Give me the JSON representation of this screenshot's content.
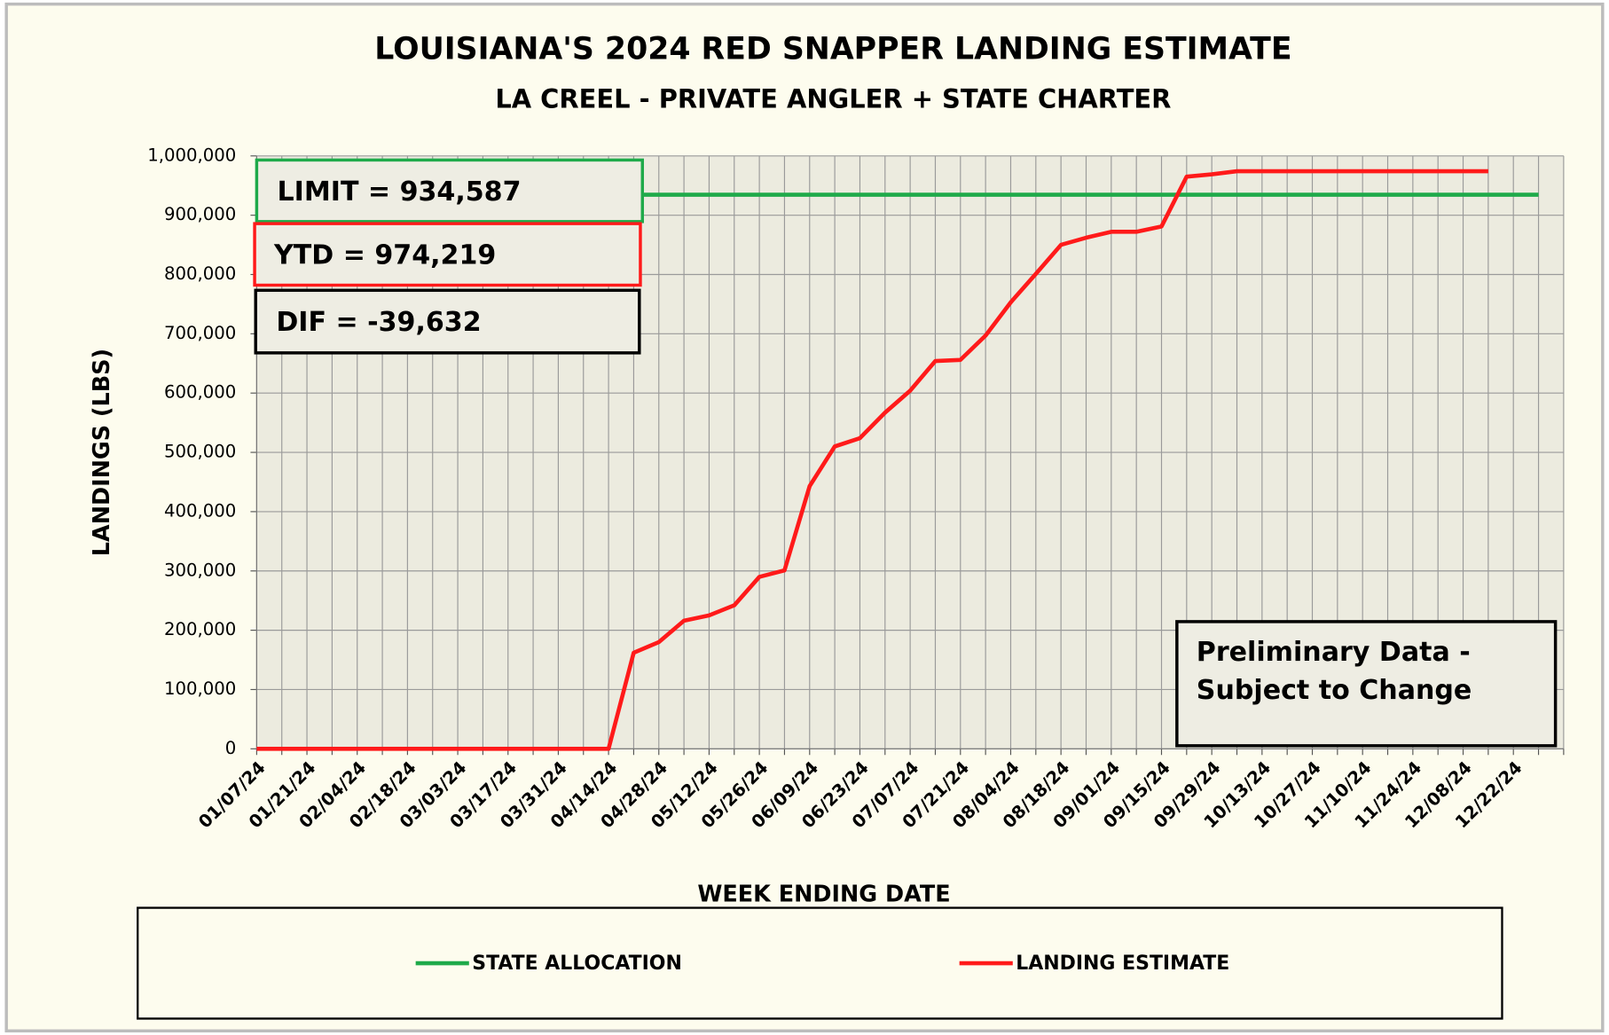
{
  "chart_data": {
    "type": "line",
    "title": "LOUISIANA'S 2024 RED SNAPPER LANDING ESTIMATE",
    "subtitle": "LA CREEL - PRIVATE ANGLER + STATE CHARTER",
    "y_label": "LANDINGS (LBS)",
    "x_label": "WEEK ENDING DATE",
    "annotations": {
      "limit": "LIMIT = 934,587",
      "ytd": "YTD = 974,219",
      "dif": "DIF = -39,632",
      "note": [
        "Preliminary Data -",
        "Subject to Change"
      ]
    },
    "categories": [
      "01/07/24",
      null,
      "01/21/24",
      null,
      "02/04/24",
      null,
      "02/18/24",
      null,
      "03/03/24",
      null,
      "03/17/24",
      null,
      "03/31/24",
      null,
      "04/14/24",
      null,
      "04/28/24",
      null,
      "05/12/24",
      null,
      "05/26/24",
      null,
      "06/09/24",
      null,
      "06/23/24",
      null,
      "07/07/24",
      null,
      "07/21/24",
      null,
      "08/04/24",
      null,
      "08/18/24",
      null,
      "09/01/24",
      null,
      "09/15/24",
      null,
      "09/29/24",
      null,
      "10/13/24",
      null,
      "10/27/24",
      null,
      "11/10/24",
      null,
      "11/24/24",
      null,
      "12/08/24",
      null,
      "12/22/24",
      null,
      null
    ],
    "series": [
      {
        "name": "STATE ALLOCATION",
        "color": "#1faa4a",
        "values": [
          934587,
          934587,
          934587,
          934587,
          934587,
          934587,
          934587,
          934587,
          934587,
          934587,
          934587,
          934587,
          934587,
          934587,
          934587,
          934587,
          934587,
          934587,
          934587,
          934587,
          934587,
          934587,
          934587,
          934587,
          934587,
          934587,
          934587,
          934587,
          934587,
          934587,
          934587,
          934587,
          934587,
          934587,
          934587,
          934587,
          934587,
          934587,
          934587,
          934587,
          934587,
          934587,
          934587,
          934587,
          934587,
          934587,
          934587,
          934587,
          934587,
          934587,
          934587,
          934587,
          null
        ]
      },
      {
        "name": "LANDING ESTIMATE",
        "color": "#ff1a1a",
        "values": [
          0,
          0,
          0,
          0,
          0,
          0,
          0,
          0,
          0,
          0,
          0,
          0,
          0,
          0,
          0,
          162000,
          180000,
          216000,
          225000,
          242000,
          290000,
          301000,
          443000,
          510000,
          524000,
          567000,
          604000,
          654000,
          656000,
          697000,
          753000,
          801000,
          850000,
          862000,
          872000,
          872000,
          881000,
          965000,
          969000,
          974219,
          974219,
          974219,
          974219,
          974219,
          974219,
          974219,
          974219,
          974219,
          974219,
          974219,
          null,
          null,
          null
        ]
      }
    ],
    "ylim": [
      0,
      1000000
    ],
    "yticks": [
      0,
      {
        "value": 100000,
        "label": "100,000"
      },
      {
        "value": 200000,
        "label": "200,000"
      },
      {
        "value": 300000,
        "label": "300,000"
      },
      {
        "value": 400000,
        "label": "400,000"
      },
      {
        "value": 500000,
        "label": "500,000"
      },
      {
        "value": 600000,
        "label": "600,000"
      },
      {
        "value": 700000,
        "label": "700,000"
      },
      {
        "value": 800000,
        "label": "800,000"
      },
      {
        "value": 900000,
        "label": "900,000"
      },
      {
        "value": 1000000,
        "label": "1,000,000"
      }
    ],
    "grid": true,
    "legend": "bottom"
  }
}
